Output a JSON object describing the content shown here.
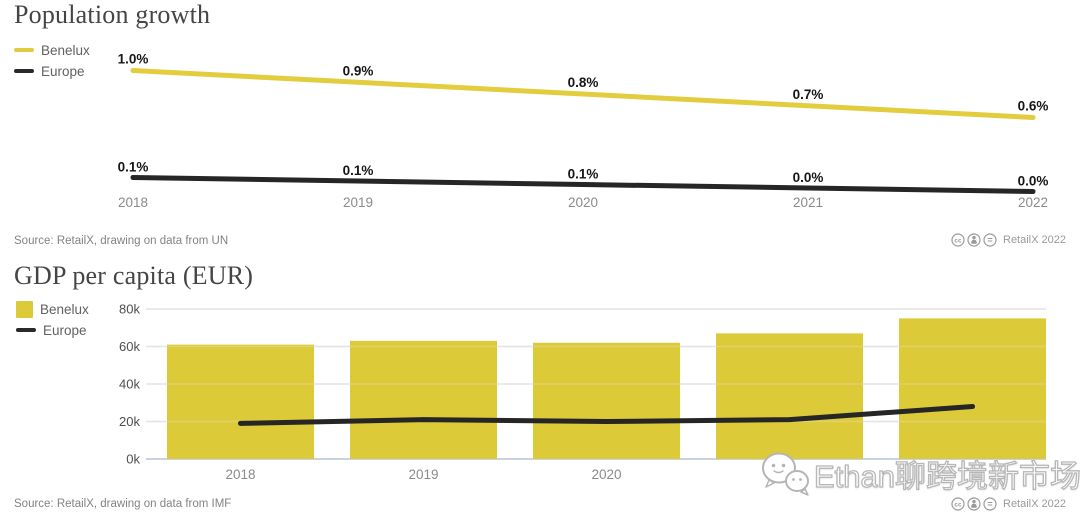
{
  "watermark": {
    "text": "Ethan聊跨境新市场",
    "icon": "wechat-icon"
  },
  "footers": [
    {
      "source": "Source: RetailX, drawing on data from UN",
      "credit": "RetailX 2022"
    },
    {
      "source": "Source: RetailX, drawing on data from IMF",
      "credit": "RetailX 2022"
    }
  ],
  "license_icons": [
    "cc",
    "attribution",
    "no-derivatives"
  ],
  "colors": {
    "benelux": "#ddca39",
    "benelux_line": "#e3cd3f",
    "europe": "#262626",
    "grid": "#e2e4e8",
    "axis": "#c7d2e3",
    "title": "#454545"
  },
  "chart_data": [
    {
      "type": "line",
      "title": "Population growth",
      "categories": [
        "2018",
        "2019",
        "2020",
        "2021",
        "2022"
      ],
      "series": [
        {
          "name": "Benelux",
          "color": "#e3cd3f",
          "values": [
            1.0,
            0.9,
            0.8,
            0.7,
            0.6
          ],
          "labels": [
            "1.0%",
            "0.9%",
            "0.8%",
            "0.7%",
            "0.6%"
          ]
        },
        {
          "name": "Europe",
          "color": "#262626",
          "values": [
            0.1,
            0.1,
            0.1,
            0.0,
            0.0
          ],
          "labels": [
            "0.1%",
            "0.1%",
            "0.1%",
            "0.0%",
            "0.0%"
          ]
        }
      ],
      "unit": "%",
      "data_labels": true,
      "grid": false,
      "legend_position": "top-left"
    },
    {
      "type": "bar+line",
      "title": "GDP per capita (EUR)",
      "categories": [
        "2018",
        "2019",
        "2020",
        "2021",
        "2022"
      ],
      "series": [
        {
          "name": "Benelux",
          "kind": "bar",
          "color": "#ddca39",
          "values": [
            61000,
            63000,
            62000,
            67000,
            75000
          ]
        },
        {
          "name": "Europe",
          "kind": "line",
          "color": "#262626",
          "values": [
            19000,
            21000,
            20000,
            21000,
            28000
          ]
        }
      ],
      "ylim": [
        0,
        80000
      ],
      "yticks": [
        {
          "v": 80000,
          "label": "80k"
        },
        {
          "v": 60000,
          "label": "60k"
        },
        {
          "v": 40000,
          "label": "40k"
        },
        {
          "v": 20000,
          "label": "20k"
        },
        {
          "v": 0,
          "label": "0k"
        }
      ],
      "visible_xticks": [
        "2018",
        "2019",
        "2020"
      ],
      "grid": true,
      "legend_position": "top-left"
    }
  ]
}
